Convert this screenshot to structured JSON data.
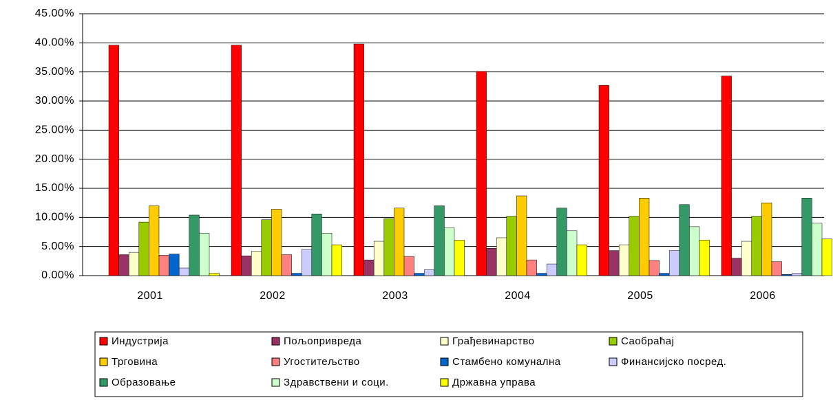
{
  "chart_data": {
    "type": "bar",
    "categories": [
      "2001",
      "2002",
      "2003",
      "2004",
      "2005",
      "2006"
    ],
    "series": [
      {
        "name": "Индустрија",
        "color": "#ff0000",
        "values": [
          39.6,
          39.6,
          39.8,
          35.1,
          32.7,
          34.3
        ]
      },
      {
        "name": "Пољопривреда",
        "color": "#993366",
        "values": [
          3.6,
          3.4,
          2.7,
          4.7,
          4.3,
          3.0
        ]
      },
      {
        "name": "Грађевинарство",
        "color": "#ffffcc",
        "values": [
          4.0,
          4.2,
          5.9,
          6.5,
          5.3,
          5.9
        ]
      },
      {
        "name": "Саобраћај",
        "color": "#99cc00",
        "values": [
          9.2,
          9.6,
          9.8,
          10.2,
          10.2,
          10.2
        ]
      },
      {
        "name": "Трговина",
        "color": "#ffcc00",
        "values": [
          12.0,
          11.4,
          11.6,
          13.7,
          13.3,
          12.5
        ]
      },
      {
        "name": "Угоститељство",
        "color": "#ff8080",
        "values": [
          3.5,
          3.6,
          3.3,
          2.7,
          2.6,
          2.4
        ]
      },
      {
        "name": "Стамбено комунална",
        "color": "#0066cc",
        "values": [
          3.7,
          0.4,
          0.4,
          0.4,
          0.4,
          0.2
        ]
      },
      {
        "name": "Финансијско посред.",
        "color": "#ccccff",
        "values": [
          1.3,
          4.5,
          1.0,
          2.0,
          4.3,
          0.4
        ]
      },
      {
        "name": "Образовање",
        "color": "#339966",
        "values": [
          10.4,
          10.6,
          12.0,
          11.6,
          12.2,
          13.3
        ]
      },
      {
        "name": "Здравствени и соци.",
        "color": "#ccffcc",
        "values": [
          7.3,
          7.3,
          8.2,
          7.7,
          8.4,
          9.0
        ]
      },
      {
        "name": "Државна управа",
        "color": "#ffff00",
        "values": [
          0.4,
          5.3,
          6.1,
          5.3,
          6.1,
          6.3
        ]
      }
    ],
    "ylim": [
      0,
      45
    ],
    "yticks": [
      {
        "value": 0,
        "label": "0.00%"
      },
      {
        "value": 5,
        "label": "5.00%"
      },
      {
        "value": 10,
        "label": "10.00%"
      },
      {
        "value": 15,
        "label": "15.00%"
      },
      {
        "value": 20,
        "label": "20.00%"
      },
      {
        "value": 25,
        "label": "25.00%"
      },
      {
        "value": 30,
        "label": "30.00%"
      },
      {
        "value": 35,
        "label": "35.00%"
      },
      {
        "value": 40,
        "label": "40.00%"
      },
      {
        "value": 45,
        "label": "45.00%"
      }
    ],
    "grid": true,
    "legend": "bottom"
  }
}
